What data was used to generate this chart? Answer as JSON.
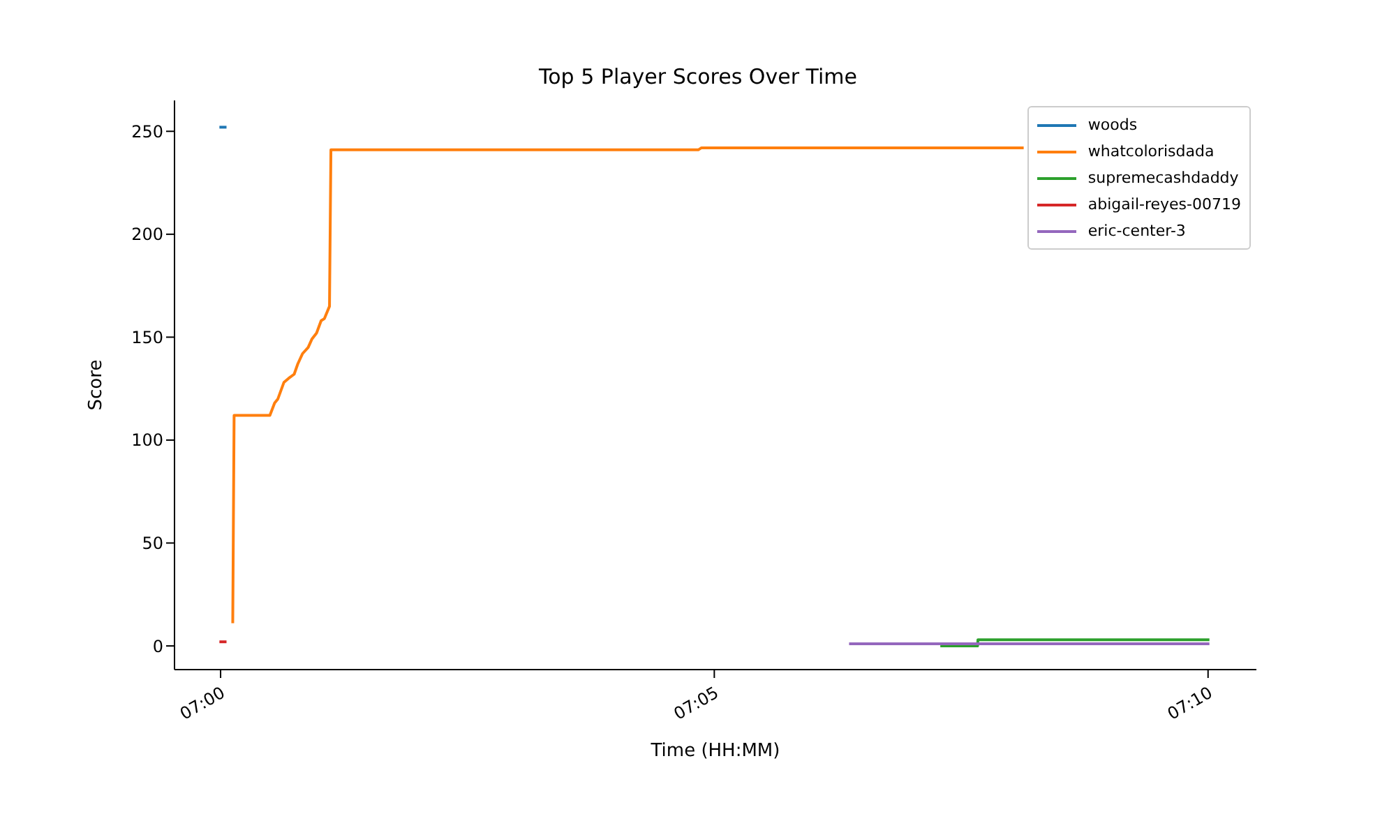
{
  "chart_data": {
    "type": "line",
    "title": "Top 5 Player Scores Over Time",
    "xlabel": "Time (HH:MM)",
    "ylabel": "Score",
    "xlim": [
      6.99222,
      7.17483
    ],
    "xticks": [
      {
        "value": 7,
        "label": "07:00"
      },
      {
        "value": 7.08333,
        "label": "07:05"
      },
      {
        "value": 7.16667,
        "label": "07:10"
      }
    ],
    "ylim": [
      -11.5,
      265
    ],
    "yticks": [
      0,
      50,
      100,
      150,
      200,
      250
    ],
    "grid": false,
    "legend": "top right",
    "marker": "none",
    "line_style": "solid",
    "series": [
      {
        "name": "woods",
        "color": "#1f77b4",
        "x": [
          6.9998,
          7.001
        ],
        "values": [
          252,
          252
        ]
      },
      {
        "name": "whatcolorisdada",
        "color": "#ff7f0e",
        "x": [
          7.00205,
          7.00228,
          7.00832,
          7.00912,
          7.00967,
          7.01068,
          7.01148,
          7.01242,
          7.01303,
          7.01383,
          7.01478,
          7.0154,
          7.0162,
          7.01697,
          7.01752,
          7.01838,
          7.01862,
          7.03152,
          7.032,
          7.08062,
          7.08117,
          7.13555
        ],
        "values": [
          11,
          112,
          112,
          118,
          120,
          128,
          130,
          132,
          137,
          142,
          145,
          149,
          152,
          158,
          159,
          165,
          241,
          241,
          241,
          241,
          242,
          242
        ]
      },
      {
        "name": "supremecashdaddy",
        "color": "#2ca02c",
        "x": [
          7.12148,
          7.12777,
          7.12783,
          7.1669
        ],
        "values": [
          0,
          0,
          3,
          3
        ]
      },
      {
        "name": "abigail-reyes-00719",
        "color": "#d62728",
        "x": [
          6.9998,
          7.001
        ],
        "values": [
          2,
          2
        ]
      },
      {
        "name": "eric-center-3",
        "color": "#9467bd",
        "x": [
          7.10608,
          7.1669
        ],
        "values": [
          1,
          1
        ]
      }
    ]
  }
}
